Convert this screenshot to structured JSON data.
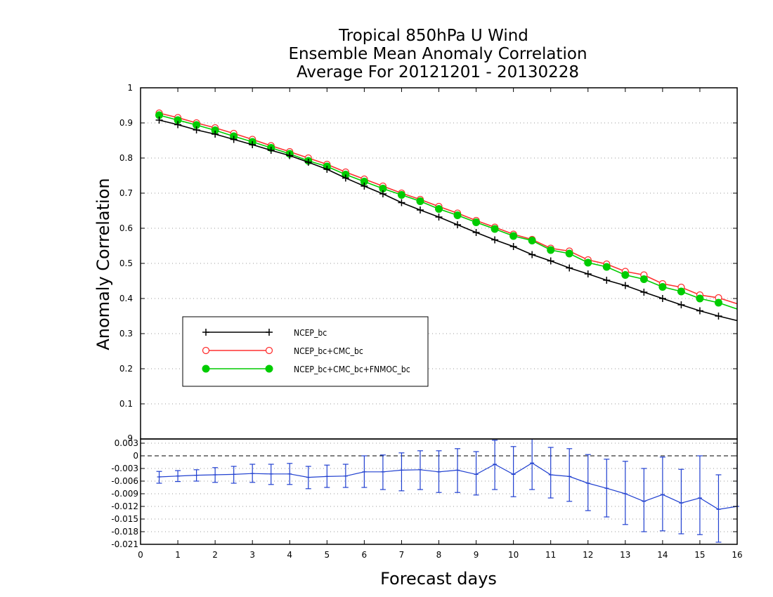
{
  "chart_data": [
    {
      "type": "line",
      "title": [
        "Tropical 850hPa U Wind",
        "Ensemble Mean Anomaly Correlation",
        "Average For 20121201 - 20130228"
      ],
      "ylabel": "Anomaly Correlation",
      "xlabel": "Forecast days",
      "xlim": [
        0,
        16
      ],
      "ylim": [
        0,
        1
      ],
      "x_ticks": [
        0,
        1,
        2,
        3,
        4,
        5,
        6,
        7,
        8,
        9,
        10,
        11,
        12,
        13,
        14,
        15,
        16
      ],
      "y_ticks": [
        0,
        0.1,
        0.2,
        0.3,
        0.4,
        0.5,
        0.6,
        0.7,
        0.8,
        0.9,
        1
      ],
      "y_tick_labels": [
        "0",
        "0.1",
        "0.2",
        "0.3",
        "0.4",
        "0.5",
        "0.6",
        "0.7",
        "0.8",
        "0.9",
        "1"
      ],
      "grid": "horizontal dotted",
      "legend_position": "center-left",
      "x": [
        0.5,
        1,
        1.5,
        2,
        2.5,
        3,
        3.5,
        4,
        4.5,
        5,
        5.5,
        6,
        6.5,
        7,
        7.5,
        8,
        8.5,
        9,
        9.5,
        10,
        10.5,
        11,
        11.5,
        12,
        12.5,
        13,
        13.5,
        14,
        14.5,
        15,
        15.5,
        16
      ],
      "series": [
        {
          "name": "NCEP_bc",
          "color": "#000000",
          "marker": "plus",
          "values": [
            0.908,
            0.895,
            0.88,
            0.868,
            0.853,
            0.838,
            0.822,
            0.807,
            0.788,
            0.768,
            0.743,
            0.72,
            0.698,
            0.673,
            0.652,
            0.632,
            0.61,
            0.588,
            0.567,
            0.548,
            0.525,
            0.507,
            0.487,
            0.47,
            0.452,
            0.437,
            0.418,
            0.4,
            0.382,
            0.365,
            0.35,
            0.337
          ]
        },
        {
          "name": "NCEP_bc+CMC_bc",
          "color": "#ff3030",
          "marker": "open-circle",
          "values": [
            0.928,
            0.915,
            0.9,
            0.886,
            0.87,
            0.853,
            0.835,
            0.818,
            0.8,
            0.782,
            0.76,
            0.74,
            0.72,
            0.7,
            0.682,
            0.662,
            0.643,
            0.622,
            0.603,
            0.583,
            0.568,
            0.543,
            0.535,
            0.51,
            0.498,
            0.477,
            0.467,
            0.442,
            0.432,
            0.41,
            0.402,
            0.385
          ]
        },
        {
          "name": "NCEP_bc+CMC_bc+FNMOC_bc",
          "color": "#00cc00",
          "marker": "filled-circle",
          "values": [
            0.922,
            0.908,
            0.894,
            0.879,
            0.862,
            0.846,
            0.829,
            0.812,
            0.792,
            0.776,
            0.753,
            0.733,
            0.713,
            0.695,
            0.677,
            0.655,
            0.637,
            0.617,
            0.598,
            0.578,
            0.565,
            0.538,
            0.528,
            0.502,
            0.49,
            0.467,
            0.455,
            0.433,
            0.42,
            0.4,
            0.388,
            0.37
          ]
        }
      ]
    },
    {
      "type": "line",
      "subtype": "difference with error bars",
      "xlim": [
        0,
        16
      ],
      "ylim": [
        -0.021,
        0.004
      ],
      "y_ticks": [
        0.003,
        0,
        -0.003,
        -0.006,
        -0.009,
        -0.012,
        -0.015,
        -0.018,
        -0.021
      ],
      "y_tick_labels": [
        "0.003",
        "0",
        "-0.003",
        "-0.006",
        "-0.009",
        "-0.012",
        "-0.015",
        "-0.018",
        "-0.021"
      ],
      "y_top_label": "9",
      "zero_line": "dashed",
      "grid": "horizontal dotted",
      "x": [
        0.5,
        1,
        1.5,
        2,
        2.5,
        3,
        3.5,
        4,
        4.5,
        5,
        5.5,
        6,
        6.5,
        7,
        7.5,
        8,
        8.5,
        9,
        9.5,
        10,
        10.5,
        11,
        11.5,
        12,
        12.5,
        13,
        13.5,
        14,
        14.5,
        15,
        15.5,
        16
      ],
      "series": [
        {
          "color": "#2040d0",
          "marker": "tick",
          "values": [
            -0.005,
            -0.0048,
            -0.0046,
            -0.0045,
            -0.0044,
            -0.0042,
            -0.0043,
            -0.0043,
            -0.0051,
            -0.0049,
            -0.0048,
            -0.0038,
            -0.0038,
            -0.0034,
            -0.0033,
            -0.0038,
            -0.0034,
            -0.0044,
            -0.002,
            -0.0044,
            -0.0017,
            -0.0045,
            -0.0049,
            -0.0065,
            -0.0077,
            -0.009,
            -0.0108,
            -0.0092,
            -0.0112,
            -0.01,
            -0.0127,
            -0.012
          ],
          "err_low": [
            -0.0065,
            -0.0061,
            -0.006,
            -0.0063,
            -0.0065,
            -0.0063,
            -0.0068,
            -0.0068,
            -0.0078,
            -0.0075,
            -0.0075,
            -0.0075,
            -0.008,
            -0.0083,
            -0.008,
            -0.0087,
            -0.0087,
            -0.0093,
            -0.008,
            -0.0097,
            -0.008,
            -0.01,
            -0.0108,
            -0.013,
            -0.0145,
            -0.0163,
            -0.018,
            -0.0178,
            -0.0185,
            -0.0187,
            -0.0205,
            -0.012
          ],
          "err_high": [
            -0.0037,
            -0.0035,
            -0.0033,
            -0.0028,
            -0.0025,
            -0.002,
            -0.002,
            -0.0018,
            -0.0025,
            -0.0022,
            -0.002,
            0.0,
            0.0002,
            0.0007,
            0.0012,
            0.0012,
            0.0017,
            0.001,
            0.0037,
            0.0022,
            0.0048,
            0.002,
            0.0017,
            0.0003,
            -0.0008,
            -0.0013,
            -0.003,
            -0.0003,
            -0.0032,
            0.0,
            -0.0045,
            -0.002
          ]
        }
      ]
    }
  ]
}
